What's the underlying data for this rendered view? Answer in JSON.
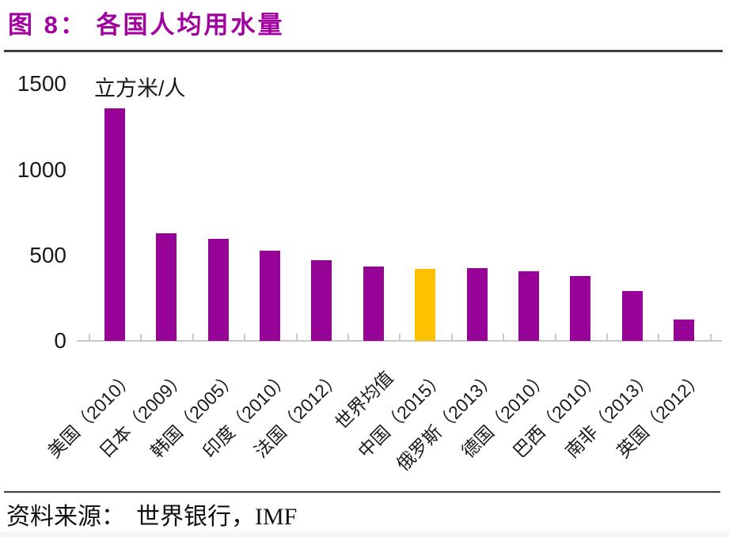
{
  "header": {
    "title": "图 8：  各国人均用水量"
  },
  "source": {
    "label": "资料来源：",
    "value": "世界银行，IMF"
  },
  "chart_data": {
    "type": "bar",
    "title": "各国人均用水量",
    "unit_label": "立方米/人",
    "categories": [
      "美国（2010）",
      "日本（2009）",
      "韩国（2005）",
      "印度（2010）",
      "法国（2012）",
      "世界均值",
      "中国（2015）",
      "俄罗斯（2013）",
      "德国（2010）",
      "巴西（2010）",
      "南非（2013）",
      "英国（2012）"
    ],
    "values": [
      1360,
      630,
      595,
      525,
      470,
      435,
      420,
      425,
      405,
      380,
      290,
      125
    ],
    "highlight_index": 6,
    "highlighted_category": "中国（2015）",
    "xlabel": "",
    "ylabel": "立方米/人",
    "yticks": [
      0,
      500,
      1000,
      1500
    ],
    "ylim": [
      0,
      1500
    ],
    "grid": false,
    "legend": null,
    "colors": {
      "bar": "#970397",
      "highlight": "#FFC000",
      "title": "#A1029E",
      "divider": "#3F3F3F",
      "axis": "#C9C7C7",
      "text": "#1A1A1A"
    }
  }
}
